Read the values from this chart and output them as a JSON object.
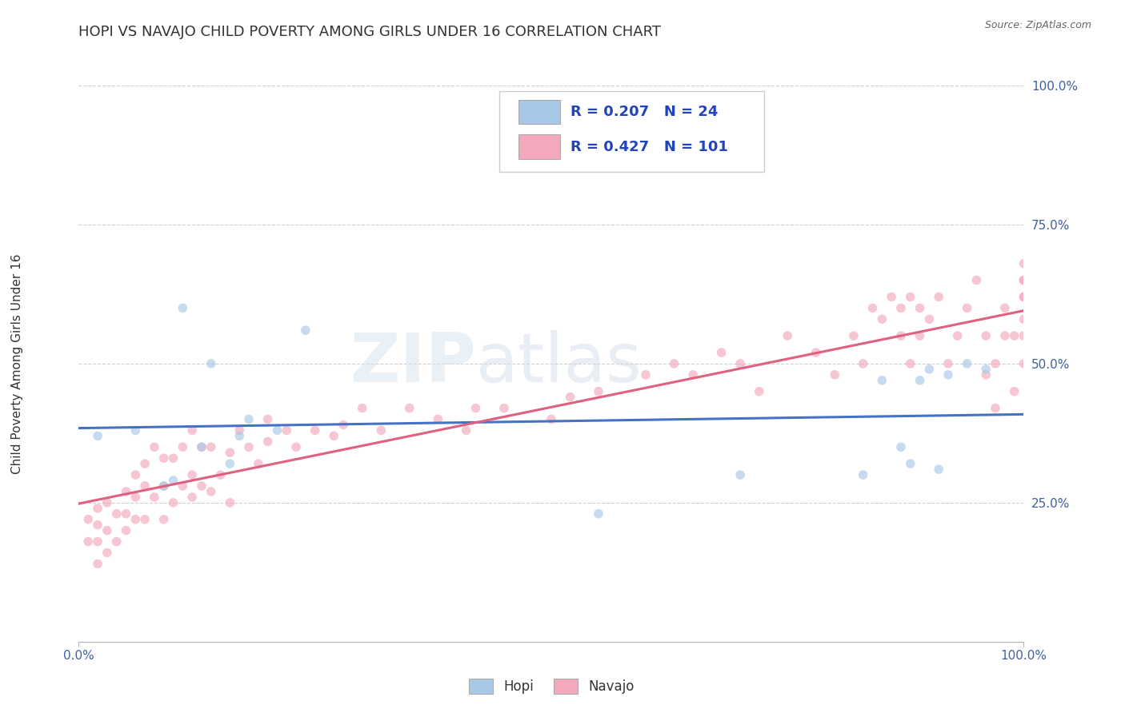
{
  "title": "HOPI VS NAVAJO CHILD POVERTY AMONG GIRLS UNDER 16 CORRELATION CHART",
  "source": "Source: ZipAtlas.com",
  "ylabel": "Child Poverty Among Girls Under 16",
  "watermark_zip": "ZIP",
  "watermark_atlas": "atlas",
  "hopi_R": 0.207,
  "hopi_N": 24,
  "navajo_R": 0.427,
  "navajo_N": 101,
  "hopi_color": "#a8c8e8",
  "navajo_color": "#f4a8bc",
  "hopi_line_color": "#4472c4",
  "navajo_line_color": "#e06080",
  "background_color": "#ffffff",
  "grid_color": "#d0d0d0",
  "xlim": [
    0.0,
    1.0
  ],
  "ylim": [
    0.0,
    1.0
  ],
  "title_fontsize": 13,
  "axis_label_fontsize": 11,
  "hopi_x": [
    0.02,
    0.06,
    0.09,
    0.1,
    0.11,
    0.13,
    0.14,
    0.16,
    0.17,
    0.18,
    0.21,
    0.24,
    0.55,
    0.7,
    0.83,
    0.85,
    0.87,
    0.88,
    0.89,
    0.9,
    0.91,
    0.92,
    0.94,
    0.96
  ],
  "hopi_y": [
    0.37,
    0.38,
    0.28,
    0.29,
    0.6,
    0.35,
    0.5,
    0.32,
    0.37,
    0.4,
    0.38,
    0.56,
    0.23,
    0.3,
    0.3,
    0.47,
    0.35,
    0.32,
    0.47,
    0.49,
    0.31,
    0.48,
    0.5,
    0.49
  ],
  "navajo_x": [
    0.01,
    0.01,
    0.02,
    0.02,
    0.02,
    0.02,
    0.03,
    0.03,
    0.03,
    0.04,
    0.04,
    0.05,
    0.05,
    0.05,
    0.06,
    0.06,
    0.06,
    0.07,
    0.07,
    0.07,
    0.08,
    0.08,
    0.09,
    0.09,
    0.09,
    0.1,
    0.1,
    0.11,
    0.11,
    0.12,
    0.12,
    0.12,
    0.13,
    0.13,
    0.14,
    0.14,
    0.15,
    0.16,
    0.16,
    0.17,
    0.18,
    0.19,
    0.2,
    0.2,
    0.22,
    0.23,
    0.25,
    0.27,
    0.28,
    0.3,
    0.32,
    0.35,
    0.38,
    0.41,
    0.42,
    0.45,
    0.5,
    0.52,
    0.55,
    0.6,
    0.63,
    0.65,
    0.68,
    0.7,
    0.72,
    0.75,
    0.78,
    0.8,
    0.82,
    0.83,
    0.84,
    0.85,
    0.86,
    0.87,
    0.87,
    0.88,
    0.88,
    0.89,
    0.89,
    0.9,
    0.91,
    0.92,
    0.93,
    0.94,
    0.95,
    0.96,
    0.96,
    0.97,
    0.97,
    0.98,
    0.98,
    0.99,
    0.99,
    1.0,
    1.0,
    1.0,
    1.0,
    1.0,
    1.0,
    1.0,
    1.0
  ],
  "navajo_y": [
    0.18,
    0.22,
    0.14,
    0.18,
    0.21,
    0.24,
    0.16,
    0.2,
    0.25,
    0.18,
    0.23,
    0.2,
    0.23,
    0.27,
    0.22,
    0.26,
    0.3,
    0.22,
    0.28,
    0.32,
    0.26,
    0.35,
    0.22,
    0.28,
    0.33,
    0.25,
    0.33,
    0.28,
    0.35,
    0.26,
    0.3,
    0.38,
    0.28,
    0.35,
    0.27,
    0.35,
    0.3,
    0.25,
    0.34,
    0.38,
    0.35,
    0.32,
    0.36,
    0.4,
    0.38,
    0.35,
    0.38,
    0.37,
    0.39,
    0.42,
    0.38,
    0.42,
    0.4,
    0.38,
    0.42,
    0.42,
    0.4,
    0.44,
    0.45,
    0.48,
    0.5,
    0.48,
    0.52,
    0.5,
    0.45,
    0.55,
    0.52,
    0.48,
    0.55,
    0.5,
    0.6,
    0.58,
    0.62,
    0.6,
    0.55,
    0.62,
    0.5,
    0.55,
    0.6,
    0.58,
    0.62,
    0.5,
    0.55,
    0.6,
    0.65,
    0.48,
    0.55,
    0.42,
    0.5,
    0.55,
    0.6,
    0.45,
    0.55,
    0.5,
    0.58,
    0.62,
    0.65,
    0.55,
    0.62,
    0.68,
    0.65
  ],
  "xtick_labels": [
    "0.0%",
    "100.0%"
  ],
  "xtick_vals": [
    0.0,
    1.0
  ],
  "ytick_labels": [
    "25.0%",
    "50.0%",
    "75.0%",
    "100.0%"
  ],
  "ytick_vals": [
    0.25,
    0.5,
    0.75,
    1.0
  ],
  "legend_hopi_label": "Hopi",
  "legend_navajo_label": "Navajo",
  "marker_size": 70,
  "marker_alpha": 0.65,
  "line_width": 2.2
}
